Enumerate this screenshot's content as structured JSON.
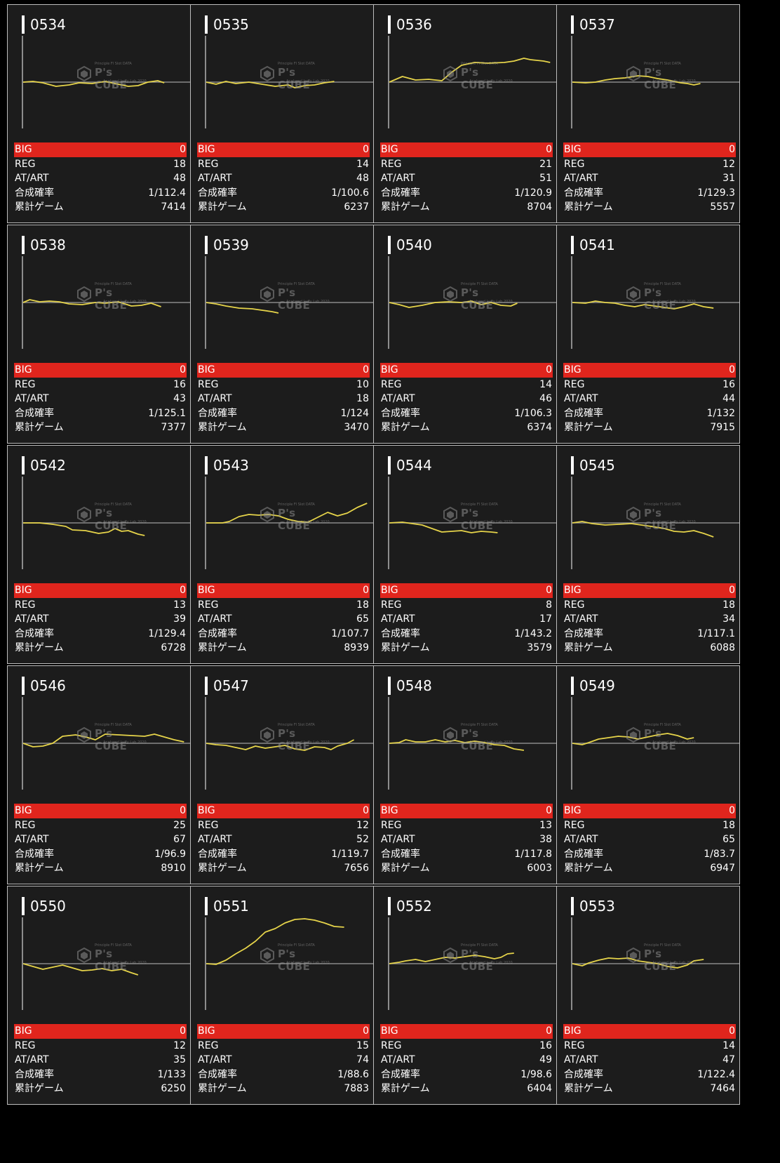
{
  "stat_labels": {
    "big": "BIG",
    "reg": "REG",
    "at_art": "AT/ART",
    "combined_prob": "合成確率",
    "total_games": "累計ゲーム"
  },
  "watermark": {
    "top_line": "Principle Fl Slot DATA",
    "brand": "P's CUBE",
    "bottom_line": "Analyzed Luffy Lab.2020"
  },
  "colors": {
    "page_bg": "#000000",
    "card_bg": "#1c1c1c",
    "card_border": "#bdbdbd",
    "big_row_bg": "#e0251d",
    "graph_line": "#e6d44a",
    "baseline": "#8a8a8a"
  },
  "machines": [
    {
      "number": "0534",
      "big": "0",
      "reg": "18",
      "at_art": "48",
      "combined_prob": "1/112.4",
      "total_games": "7414"
    },
    {
      "number": "0535",
      "big": "0",
      "reg": "14",
      "at_art": "48",
      "combined_prob": "1/100.6",
      "total_games": "6237"
    },
    {
      "number": "0536",
      "big": "0",
      "reg": "21",
      "at_art": "51",
      "combined_prob": "1/120.9",
      "total_games": "8704"
    },
    {
      "number": "0537",
      "big": "0",
      "reg": "12",
      "at_art": "31",
      "combined_prob": "1/129.3",
      "total_games": "5557"
    },
    {
      "number": "0538",
      "big": "0",
      "reg": "16",
      "at_art": "43",
      "combined_prob": "1/125.1",
      "total_games": "7377"
    },
    {
      "number": "0539",
      "big": "0",
      "reg": "10",
      "at_art": "18",
      "combined_prob": "1/124",
      "total_games": "3470"
    },
    {
      "number": "0540",
      "big": "0",
      "reg": "14",
      "at_art": "46",
      "combined_prob": "1/106.3",
      "total_games": "6374"
    },
    {
      "number": "0541",
      "big": "0",
      "reg": "16",
      "at_art": "44",
      "combined_prob": "1/132",
      "total_games": "7915"
    },
    {
      "number": "0542",
      "big": "0",
      "reg": "13",
      "at_art": "39",
      "combined_prob": "1/129.4",
      "total_games": "6728"
    },
    {
      "number": "0543",
      "big": "0",
      "reg": "18",
      "at_art": "65",
      "combined_prob": "1/107.7",
      "total_games": "8939"
    },
    {
      "number": "0544",
      "big": "0",
      "reg": "8",
      "at_art": "17",
      "combined_prob": "1/143.2",
      "total_games": "3579"
    },
    {
      "number": "0545",
      "big": "0",
      "reg": "18",
      "at_art": "34",
      "combined_prob": "1/117.1",
      "total_games": "6088"
    },
    {
      "number": "0546",
      "big": "0",
      "reg": "25",
      "at_art": "67",
      "combined_prob": "1/96.9",
      "total_games": "8910"
    },
    {
      "number": "0547",
      "big": "0",
      "reg": "12",
      "at_art": "52",
      "combined_prob": "1/119.7",
      "total_games": "7656"
    },
    {
      "number": "0548",
      "big": "0",
      "reg": "13",
      "at_art": "38",
      "combined_prob": "1/117.8",
      "total_games": "6003"
    },
    {
      "number": "0549",
      "big": "0",
      "reg": "18",
      "at_art": "65",
      "combined_prob": "1/83.7",
      "total_games": "6947"
    },
    {
      "number": "0550",
      "big": "0",
      "reg": "12",
      "at_art": "35",
      "combined_prob": "1/133",
      "total_games": "6250"
    },
    {
      "number": "0551",
      "big": "0",
      "reg": "15",
      "at_art": "74",
      "combined_prob": "1/88.6",
      "total_games": "7883"
    },
    {
      "number": "0552",
      "big": "0",
      "reg": "16",
      "at_art": "49",
      "combined_prob": "1/98.6",
      "total_games": "6404"
    },
    {
      "number": "0553",
      "big": "0",
      "reg": "14",
      "at_art": "47",
      "combined_prob": "1/122.4",
      "total_games": "7464"
    }
  ]
}
